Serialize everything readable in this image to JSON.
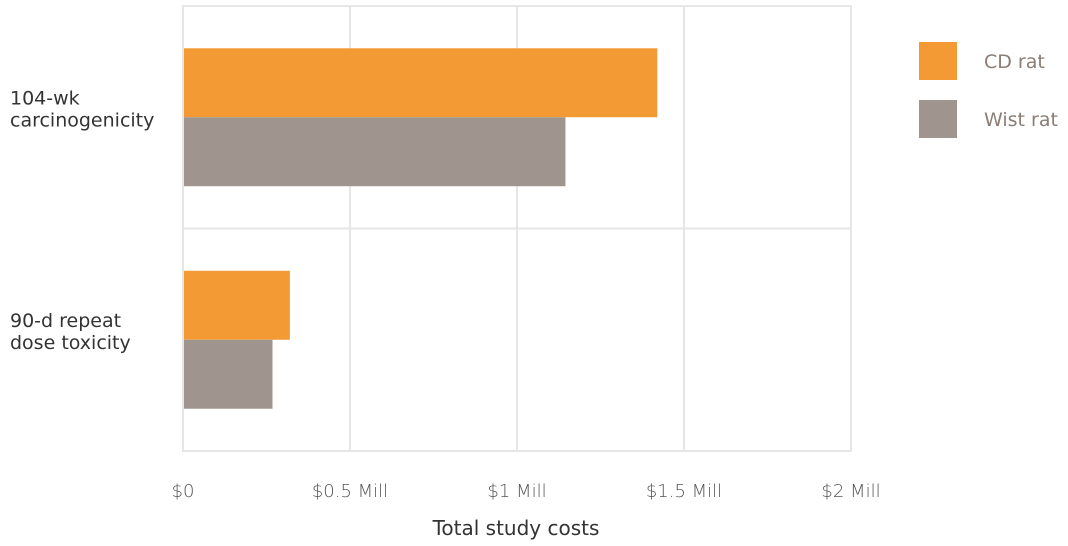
{
  "chart_data": {
    "type": "bar",
    "orientation": "horizontal",
    "categories": [
      "104-wk\ncarcinogenicity",
      "90-d repeat\ndose toxicity"
    ],
    "series": [
      {
        "name": "CD rat",
        "color": "#f39a35",
        "values": [
          1420000,
          320000
        ]
      },
      {
        "name": "Wist rat",
        "color": "#a0958e",
        "values": [
          1145000,
          268000
        ]
      }
    ],
    "xlabel": "Total study costs",
    "ylabel": "",
    "xlim": [
      0,
      2000000
    ],
    "ticks": [
      {
        "value": 0,
        "label": "$0"
      },
      {
        "value": 500000,
        "label": "$0.5 Mill"
      },
      {
        "value": 1000000,
        "label": "$1 Mill"
      },
      {
        "value": 1500000,
        "label": "$1.5 Mill"
      },
      {
        "value": 2000000,
        "label": "$2 Mill"
      }
    ],
    "grid": true,
    "legend_position": "right",
    "grid_color": "#e6e6e6"
  }
}
